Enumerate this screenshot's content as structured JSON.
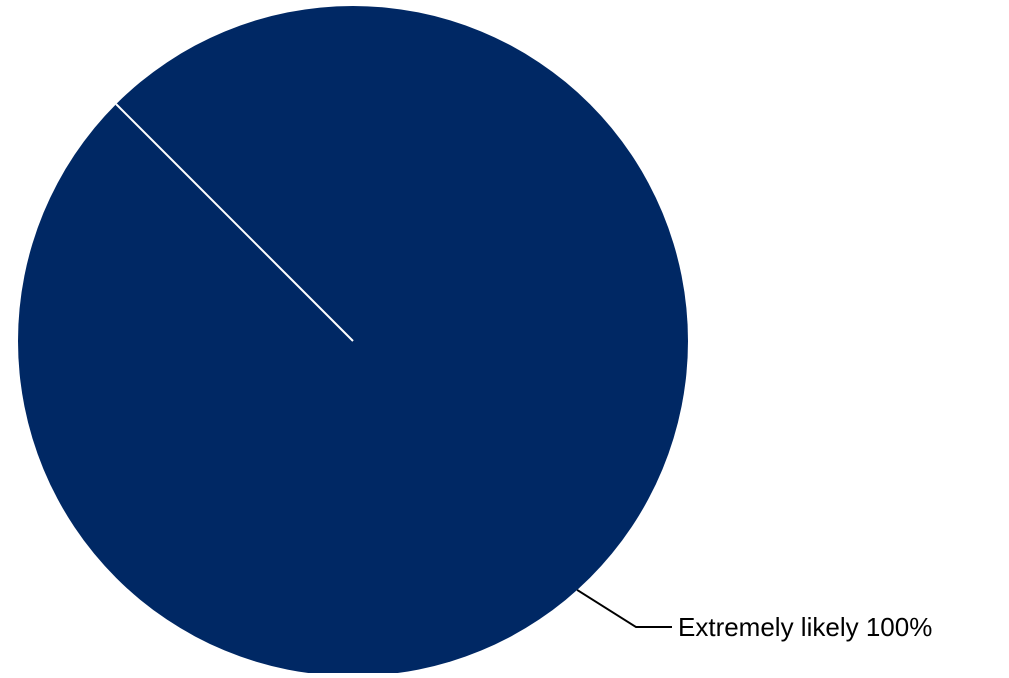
{
  "chart_data": {
    "type": "pie",
    "title": "",
    "slices": [
      {
        "label": "Extremely likely",
        "value": 100,
        "value_label": "100%",
        "color": "#002864"
      }
    ],
    "legend": "none",
    "data_labels": "outside with leader line"
  },
  "colors": {
    "background": "#ffffff",
    "slice_border": "#ffffff",
    "leader_line": "#000000",
    "label_text": "#000000"
  }
}
